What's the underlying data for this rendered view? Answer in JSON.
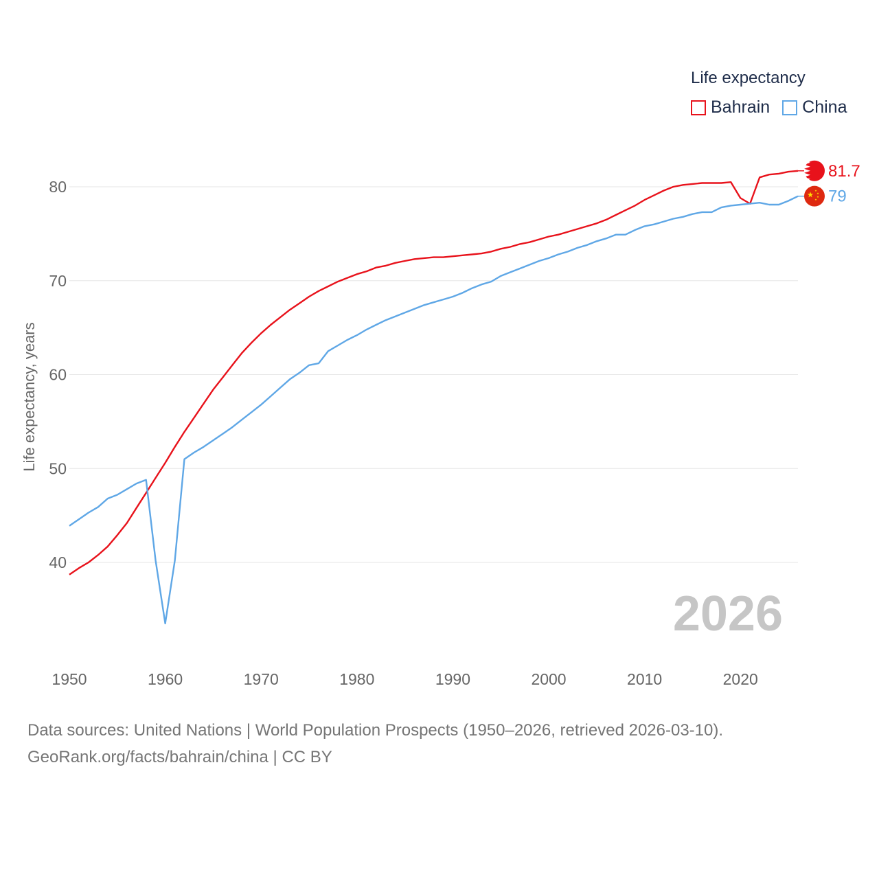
{
  "legend": {
    "title": "Life expectancy",
    "items": [
      {
        "label": "Bahrain",
        "color": "#e8121b"
      },
      {
        "label": "China",
        "color": "#5fa7e6"
      }
    ]
  },
  "year_watermark": "2026",
  "footer": {
    "line1": "Data sources: United Nations | World Population Prospects (1950–2026, retrieved 2026-03-10).",
    "line2": "GeoRank.org/facts/bahrain/china | CC BY"
  },
  "chart_data": {
    "type": "line",
    "title": "Life expectancy",
    "xlabel": "",
    "ylabel": "Life expectancy, years",
    "xlim": [
      1950,
      2026
    ],
    "ylim": [
      32,
      84
    ],
    "xticks": [
      1950,
      1960,
      1970,
      1980,
      1990,
      2000,
      2010,
      2020
    ],
    "yticks": [
      40,
      50,
      60,
      70,
      80
    ],
    "grid": true,
    "legend_position": "top-right",
    "x": [
      1950,
      1951,
      1952,
      1953,
      1954,
      1955,
      1956,
      1957,
      1958,
      1959,
      1960,
      1961,
      1962,
      1963,
      1964,
      1965,
      1966,
      1967,
      1968,
      1969,
      1970,
      1971,
      1972,
      1973,
      1974,
      1975,
      1976,
      1977,
      1978,
      1979,
      1980,
      1981,
      1982,
      1983,
      1984,
      1985,
      1986,
      1987,
      1988,
      1989,
      1990,
      1991,
      1992,
      1993,
      1994,
      1995,
      1996,
      1997,
      1998,
      1999,
      2000,
      2001,
      2002,
      2003,
      2004,
      2005,
      2006,
      2007,
      2008,
      2009,
      2010,
      2011,
      2012,
      2013,
      2014,
      2015,
      2016,
      2017,
      2018,
      2019,
      2020,
      2021,
      2022,
      2023,
      2024,
      2025,
      2026
    ],
    "series": [
      {
        "name": "Bahrain",
        "color": "#e8121b",
        "end_label": "81.7",
        "values": [
          38.7,
          39.4,
          40.0,
          40.8,
          41.7,
          42.9,
          44.2,
          45.8,
          47.4,
          49.0,
          50.6,
          52.3,
          53.9,
          55.4,
          56.9,
          58.4,
          59.7,
          61.0,
          62.3,
          63.4,
          64.4,
          65.3,
          66.1,
          66.9,
          67.6,
          68.3,
          68.9,
          69.4,
          69.9,
          70.3,
          70.7,
          71.0,
          71.4,
          71.6,
          71.9,
          72.1,
          72.3,
          72.4,
          72.5,
          72.5,
          72.6,
          72.7,
          72.8,
          72.9,
          73.1,
          73.4,
          73.6,
          73.9,
          74.1,
          74.4,
          74.7,
          74.9,
          75.2,
          75.5,
          75.8,
          76.1,
          76.5,
          77.0,
          77.5,
          78.0,
          78.6,
          79.1,
          79.6,
          80.0,
          80.2,
          80.3,
          80.4,
          80.4,
          80.4,
          80.5,
          78.8,
          78.2,
          81.0,
          81.3,
          81.4,
          81.6,
          81.7
        ]
      },
      {
        "name": "China",
        "color": "#5fa7e6",
        "end_label": "79",
        "values": [
          43.9,
          44.6,
          45.3,
          45.9,
          46.8,
          47.2,
          47.8,
          48.4,
          48.8,
          40.2,
          33.5,
          40.2,
          51.0,
          51.7,
          52.3,
          53.0,
          53.7,
          54.4,
          55.2,
          56.0,
          56.8,
          57.7,
          58.6,
          59.5,
          60.2,
          61.0,
          61.2,
          62.5,
          63.1,
          63.7,
          64.2,
          64.8,
          65.3,
          65.8,
          66.2,
          66.6,
          67.0,
          67.4,
          67.7,
          68.0,
          68.3,
          68.7,
          69.2,
          69.6,
          69.9,
          70.5,
          70.9,
          71.3,
          71.7,
          72.1,
          72.4,
          72.8,
          73.1,
          73.5,
          73.8,
          74.2,
          74.5,
          74.9,
          74.9,
          75.4,
          75.8,
          76.0,
          76.3,
          76.6,
          76.8,
          77.1,
          77.3,
          77.3,
          77.8,
          78.0,
          78.1,
          78.2,
          78.3,
          78.1,
          78.1,
          78.5,
          79.0
        ]
      }
    ]
  }
}
